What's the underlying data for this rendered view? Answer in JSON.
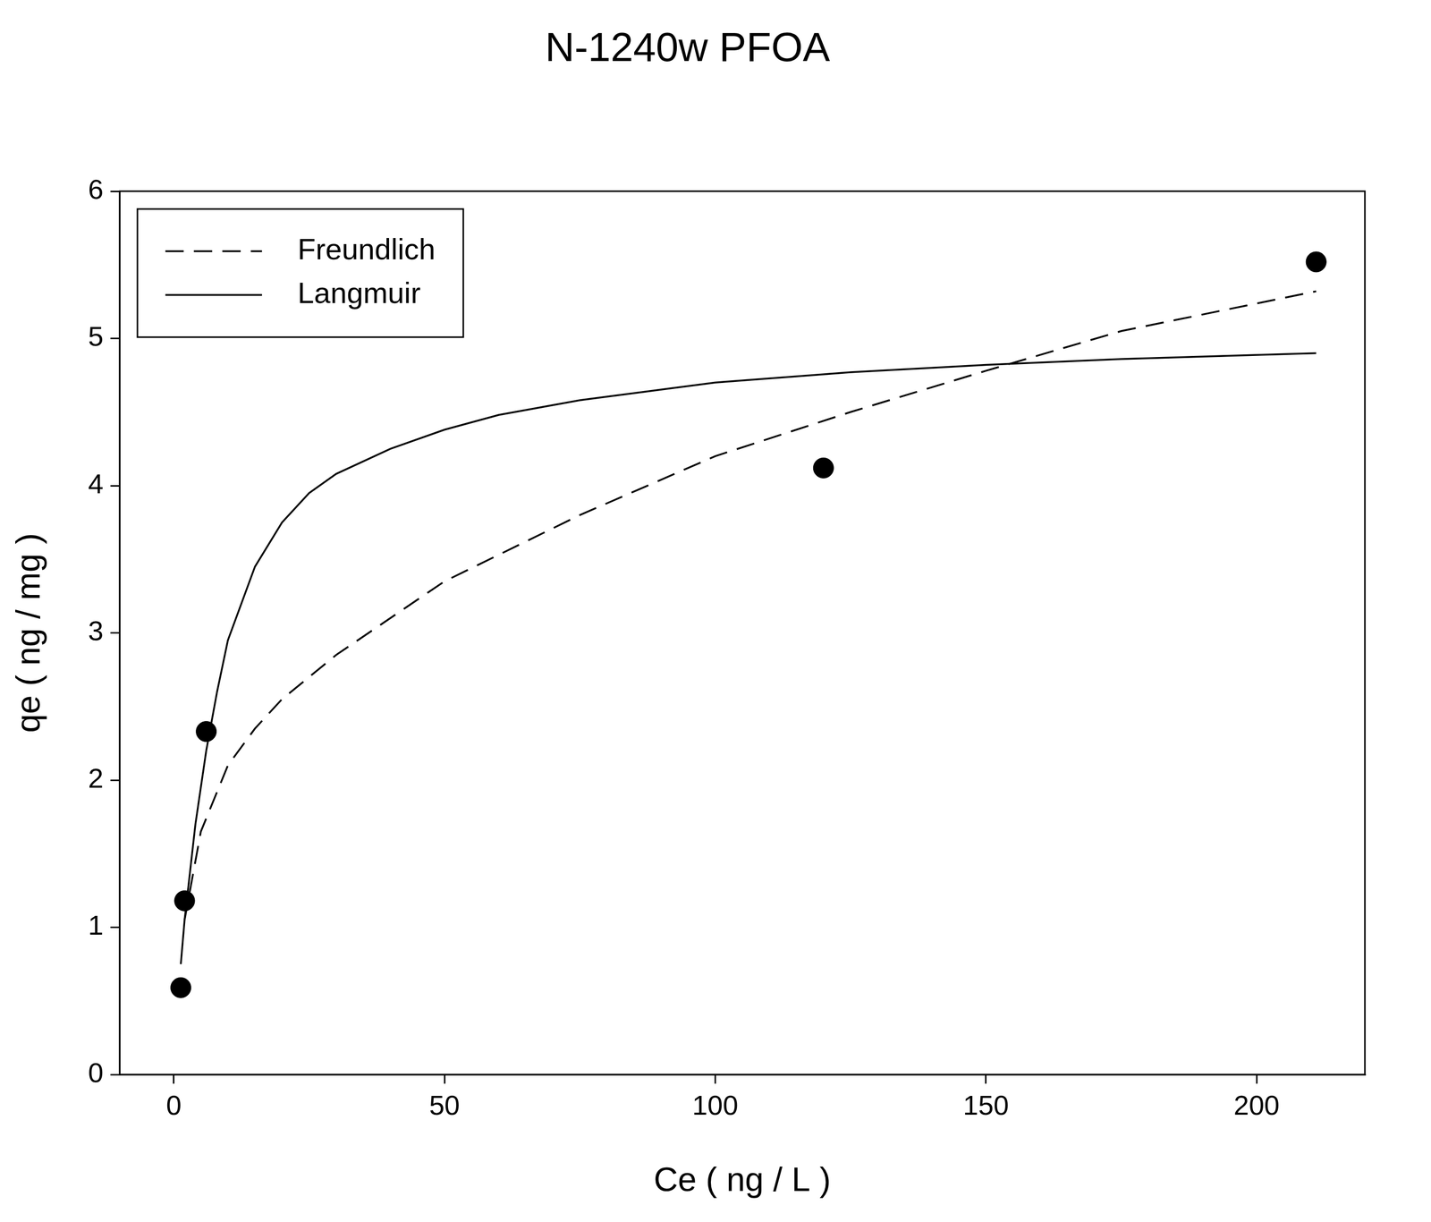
{
  "chart_data": {
    "type": "scatter",
    "title": "N-1240w PFOA",
    "x_label": "Ce ( ng / L )",
    "y_label": "qe ( ng / mg )",
    "xlim": [
      -10,
      220
    ],
    "xticks": [
      0,
      50,
      100,
      150,
      200
    ],
    "ylim": [
      0,
      6
    ],
    "yticks": [
      0,
      1,
      2,
      3,
      4,
      5,
      6
    ],
    "grid": false,
    "legend": "upper left",
    "series": [
      {
        "type": "scatter",
        "marker": "circle",
        "color": "#000000",
        "x": [
          1.3,
          2,
          6,
          120,
          211
        ],
        "values": [
          0.59,
          1.18,
          2.33,
          4.12,
          5.52
        ]
      },
      {
        "name": "Freundlich",
        "type": "line",
        "line_style": "dashed",
        "color": "#000000",
        "x": [
          2,
          5,
          10,
          15,
          20,
          30,
          40,
          50,
          75,
          100,
          125,
          150,
          175,
          211
        ],
        "values": [
          1.05,
          1.65,
          2.1,
          2.35,
          2.55,
          2.85,
          3.1,
          3.35,
          3.8,
          4.2,
          4.5,
          4.78,
          5.05,
          5.32
        ]
      },
      {
        "name": "Langmuir",
        "type": "line",
        "line_style": "solid",
        "color": "#000000",
        "x": [
          1.3,
          2,
          4,
          6,
          8,
          10,
          15,
          20,
          25,
          30,
          40,
          50,
          60,
          75,
          100,
          125,
          150,
          175,
          211
        ],
        "values": [
          0.75,
          1.05,
          1.7,
          2.2,
          2.6,
          2.95,
          3.45,
          3.75,
          3.95,
          4.08,
          4.25,
          4.38,
          4.48,
          4.58,
          4.7,
          4.77,
          4.82,
          4.86,
          4.9
        ]
      }
    ]
  }
}
